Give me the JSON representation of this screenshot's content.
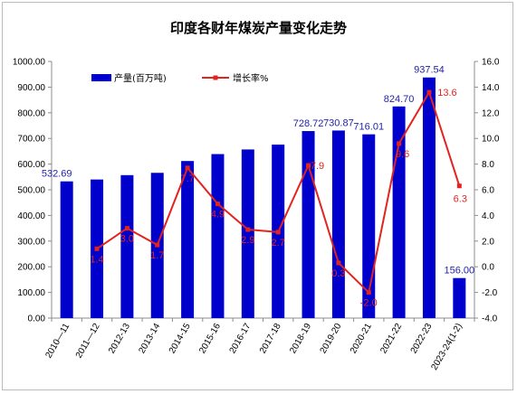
{
  "chart_data": {
    "type": "bar",
    "title": "印度各财年煤炭产量变化走势",
    "categories": [
      "2010—11",
      "2011—12",
      "2012-13",
      "2013-14",
      "2014-15",
      "2015-16",
      "2016-17",
      "2017-18",
      "2018-19",
      "2019-20",
      "2020-21",
      "2021-22",
      "2022-23",
      "2023-24(1-2)"
    ],
    "series": [
      {
        "name": "产量(百万吨)",
        "type": "bar",
        "axis": "left",
        "color": "#0000cc",
        "values": [
          532.69,
          540,
          557,
          566,
          612,
          639,
          657,
          676,
          728.72,
          730.87,
          716.01,
          824.7,
          937.54,
          156.0
        ],
        "labels": [
          "532.69",
          "",
          "",
          "",
          "",
          "",
          "",
          "",
          "728.72",
          "730.87",
          "716.01",
          "824.70",
          "937.54",
          "156.00"
        ]
      },
      {
        "name": "增长率%",
        "type": "line",
        "axis": "right",
        "color": "#e3231f",
        "values": [
          null,
          1.4,
          3.0,
          1.7,
          7.7,
          4.9,
          2.9,
          2.7,
          7.9,
          0.3,
          -2.0,
          9.6,
          13.6,
          6.3
        ],
        "labels": [
          "",
          "1.4",
          "3.0",
          "1.7",
          "7.7",
          "4.9",
          "2.9",
          "2.7",
          "7.9",
          "0.3",
          "-2.0",
          "9.6",
          "13.6",
          "6.3"
        ]
      }
    ],
    "yleft": {
      "min": 0,
      "max": 1000,
      "step": 100,
      "tick_labels": [
        "0.00",
        "100.00",
        "200.00",
        "300.00",
        "400.00",
        "500.00",
        "600.00",
        "700.00",
        "800.00",
        "900.00",
        "1000.00"
      ]
    },
    "yright": {
      "min": -4,
      "max": 16,
      "step": 2,
      "tick_labels": [
        "-4.0",
        "-2.0",
        "0.0",
        "2.0",
        "4.0",
        "6.0",
        "8.0",
        "10.0",
        "12.0",
        "14.0",
        "16.0"
      ]
    },
    "grid": false,
    "legend": "top-left"
  }
}
